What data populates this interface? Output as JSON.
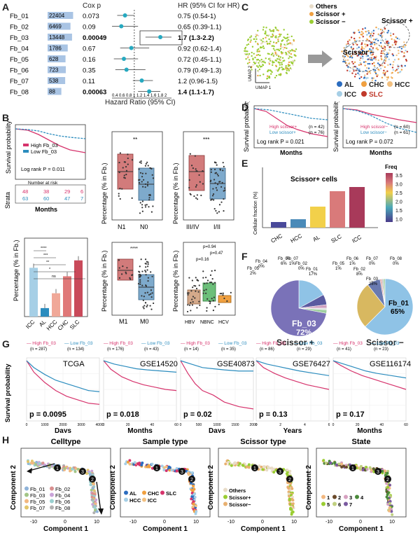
{
  "panels": {
    "A": {
      "letter": "A",
      "col_cox": "Cox p",
      "col_hr": "HR (95% CI for HR)",
      "xlabel": "Hazard Ratio (95% CI)",
      "ticks": "0.4 0.6 0.8 1 1.2 1.4 1.6 1.8 2",
      "rows": [
        {
          "name": "Fb_01",
          "count": "22404",
          "p": "0.073",
          "hr": "0.75 (0.54-1)",
          "est": 0.75,
          "lo": 0.54,
          "hi": 1.0,
          "bold": false
        },
        {
          "name": "Fb_02",
          "count": "6469",
          "p": "0.09",
          "hr": "0.65 (0.39-1.1)",
          "est": 0.65,
          "lo": 0.39,
          "hi": 1.1,
          "bold": false
        },
        {
          "name": "Fb_03",
          "count": "13448",
          "p": "0.00049",
          "hr": "1.7 (1.3-2.2)",
          "est": 1.7,
          "lo": 1.3,
          "hi": 2.2,
          "bold": true
        },
        {
          "name": "Fb_04",
          "count": "1786",
          "p": "0.67",
          "hr": "0.92 (0.62-1.4)",
          "est": 0.92,
          "lo": 0.62,
          "hi": 1.4,
          "bold": false
        },
        {
          "name": "Fb_05",
          "count": "628",
          "p": "0.16",
          "hr": "0.72 (0.45-1.1)",
          "est": 0.72,
          "lo": 0.45,
          "hi": 1.1,
          "bold": false
        },
        {
          "name": "Fb_06",
          "count": "723",
          "p": "0.35",
          "hr": "0.79 (0.49-1.3)",
          "est": 0.79,
          "lo": 0.49,
          "hi": 1.3,
          "bold": false
        },
        {
          "name": "Fb_07",
          "count": "538",
          "p": "0.11",
          "hr": "1.2 (0.96-1.5)",
          "est": 1.2,
          "lo": 0.96,
          "hi": 1.5,
          "bold": false
        },
        {
          "name": "Fb_08",
          "count": "88",
          "p": "0.00063",
          "hr": "1.4 (1.1-1.7)",
          "est": 1.4,
          "lo": 1.1,
          "hi": 1.7,
          "bold": true
        }
      ]
    },
    "B": {
      "letter": "B",
      "km_ylabel": "Survival probability",
      "km_high": "High Fb_03",
      "km_low": "Low Fb_03",
      "km_p": "Log rank P = 0.011",
      "risk_title": "Number at risk",
      "risk_high": [
        "48",
        "38",
        "29",
        "6"
      ],
      "risk_low": [
        "63",
        "60",
        "47",
        "7"
      ],
      "strata": "Strata",
      "months": "Months",
      "box_ylabel": "Percentage (% in Fb.)",
      "box1": {
        "sig": "**",
        "labels": [
          "N1",
          "N0"
        ]
      },
      "box2": {
        "sig": "***",
        "labels": [
          "III/IV",
          "I/II"
        ]
      },
      "box3": {
        "sig": "****",
        "labels": [
          "M1",
          "M0"
        ]
      },
      "bar": {
        "labels": [
          "ICC",
          "AL",
          "HCC",
          "CHC",
          "SLC"
        ],
        "values": [
          0.46,
          0.08,
          0.22,
          0.38,
          0.53
        ],
        "sig": [
          "****",
          "***",
          "**",
          "*",
          "ns"
        ]
      },
      "box4": {
        "labels": [
          "HBV",
          "NBNC",
          "HCV"
        ],
        "p1": "p=0.94",
        "p2": "p=0.47",
        "p3": "p=0.16"
      }
    },
    "C": {
      "letter": "C",
      "legend": [
        "Others",
        "Scissor +",
        "Scissor −"
      ],
      "scissor_plus": "Scissor +",
      "scissor_minus": "Scissor −",
      "umap1": "UMAP 1",
      "umap2": "UMAP 2",
      "types": [
        "AL",
        "CHC",
        "HCC",
        "ICC",
        "SLC"
      ]
    },
    "D": {
      "letter": "D",
      "ylabel": "Survival probability",
      "xlabel": "Months",
      "left": {
        "high": "High scissor+",
        "high_n": "(n = 42)",
        "low": "Low scissor+",
        "low_n": "(n = 76)",
        "p": "Log rank P = 0.021"
      },
      "right": {
        "high": "High scissor−",
        "high_n": "(n = 60)",
        "low": "Low scissor−",
        "low_n": "(n = 61)",
        "p": "Log rank P = 0.072"
      }
    },
    "E": {
      "letter": "E",
      "title": "Scissor+ cells",
      "ylabel": "Cellular fraction (%)",
      "legend_title": "Freq",
      "legend_ticks": [
        "3.5",
        "3.0",
        "2.5",
        "2.0",
        "1.5",
        "1.0"
      ]
    },
    "F": {
      "letter": "F",
      "left_title": "Scissor +",
      "right_title": "Scissor −",
      "left_main": "Fb_03",
      "left_main_pct": "72%",
      "right_main": "Fb_01",
      "right_main_pct": "65%",
      "left_small": [
        "Fb_04",
        "Fb_05",
        "Fb_06",
        "Fb_07",
        "Fb_01",
        "Fb_02"
      ],
      "left_small_pct": [
        "0%",
        "2%",
        "6%",
        "1%",
        "17%",
        "0%"
      ],
      "right_small": [
        "Fb_05",
        "Fb_06",
        "Fb_07",
        "Fb_08",
        "Fb_02",
        "Fb_03"
      ],
      "right_small_pct": [
        "1%",
        "1%",
        "0%",
        "0%",
        "8%",
        "28%"
      ]
    },
    "G": {
      "letter": "G",
      "ylabel": "Survival probability",
      "plots": [
        {
          "high": "High Fb_03",
          "high_n": "(n = 287)",
          "low": "Low Fb_03",
          "low_n": "(n = 134)",
          "title": "TCGA",
          "p": "p = 0.0095",
          "xlabel": "Days",
          "ticks": [
            "0",
            "1000",
            "2000",
            "3000",
            "4000"
          ]
        },
        {
          "high": "High Fb_03",
          "high_n": "(n = 176)",
          "low": "Low Fb_03",
          "low_n": "(n = 43)",
          "title": "GSE14520",
          "p": "p = 0.018",
          "xlabel": "Months",
          "ticks": [
            "0",
            "20",
            "40",
            "60"
          ]
        },
        {
          "high": "High Fb_03",
          "high_n": "(n = 14)",
          "low": "Low Fb_03",
          "low_n": "(n = 35)",
          "title": "GSE40873",
          "p": "p = 0.02",
          "xlabel": "Days",
          "ticks": [
            "0",
            "500",
            "1000",
            "1500",
            "2000"
          ]
        },
        {
          "high": "High Fb_03",
          "high_n": "(n = 86)",
          "low": "Low Fb_03",
          "low_n": "(n = 29)",
          "title": "GSE76427",
          "p": "p = 0.13",
          "xlabel": "Years",
          "ticks": [
            "0",
            "2",
            "4",
            "6"
          ]
        },
        {
          "high": "High Fb_03",
          "high_n": "(n = 41)",
          "low": "Low Fb_03",
          "low_n": "(n = 23)",
          "title": "GSE116174",
          "p": "p = 0.17",
          "xlabel": "Months",
          "ticks": [
            "0",
            "20",
            "40",
            "60"
          ]
        }
      ]
    },
    "H": {
      "letter": "H",
      "titles": [
        "Celltype",
        "Sample type",
        "Scissor type",
        "State"
      ],
      "xlabel": "Component 1",
      "ylabel": "Component 2",
      "celltype_legend": [
        "Fb_01",
        "Fb_02",
        "Fb_03",
        "Fb_04",
        "Fb_05",
        "Fb_06",
        "Fb_07",
        "Fb_08"
      ],
      "sample_legend": [
        "AL",
        "CHC",
        "SLC",
        "HCC",
        "ICC"
      ],
      "scissor_legend": [
        "Others",
        "Scissor+",
        "Scissor−"
      ],
      "state_legend": [
        "1",
        "2",
        "3",
        "4",
        "5",
        "6",
        "7"
      ],
      "xticks": [
        "-10",
        "0",
        "10"
      ]
    }
  },
  "colors": {
    "high": "#d6336c",
    "low": "#2b8cbe",
    "teal": "#26a9c0",
    "orange": "#f0a040",
    "green": "#9acd32"
  }
}
